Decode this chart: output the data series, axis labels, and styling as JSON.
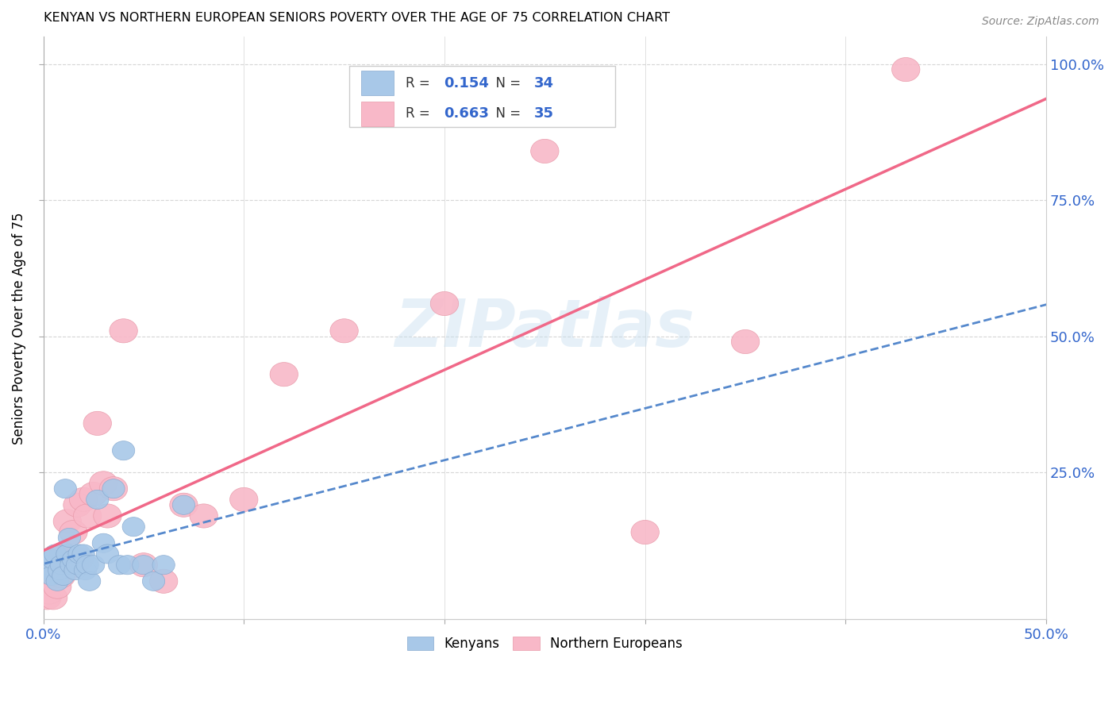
{
  "title": "KENYAN VS NORTHERN EUROPEAN SENIORS POVERTY OVER THE AGE OF 75 CORRELATION CHART",
  "source": "Source: ZipAtlas.com",
  "ylabel": "Seniors Poverty Over the Age of 75",
  "xlim": [
    0.0,
    0.5
  ],
  "ylim": [
    -0.02,
    1.05
  ],
  "xticks": [
    0.0,
    0.5
  ],
  "xtick_labels": [
    "0.0%",
    "50.0%"
  ],
  "ytick_vals": [
    0.25,
    0.5,
    0.75,
    1.0
  ],
  "ytick_labels": [
    "25.0%",
    "50.0%",
    "75.0%",
    "100.0%"
  ],
  "watermark_text": "ZIPatlas",
  "kenyan_R": 0.154,
  "kenyan_N": 34,
  "northern_R": 0.663,
  "northern_N": 35,
  "kenyan_color": "#a8c8e8",
  "northern_color": "#f8b8c8",
  "kenyan_edge_color": "#88aad0",
  "northern_edge_color": "#e898a8",
  "kenyan_line_color": "#5588cc",
  "northern_line_color": "#f06888",
  "kenyan_x": [
    0.002,
    0.003,
    0.004,
    0.005,
    0.006,
    0.007,
    0.008,
    0.009,
    0.01,
    0.011,
    0.012,
    0.013,
    0.014,
    0.015,
    0.016,
    0.017,
    0.018,
    0.02,
    0.021,
    0.022,
    0.023,
    0.025,
    0.027,
    0.03,
    0.032,
    0.035,
    0.038,
    0.04,
    0.042,
    0.045,
    0.05,
    0.055,
    0.06,
    0.07
  ],
  "kenyan_y": [
    0.08,
    0.07,
    0.06,
    0.09,
    0.1,
    0.05,
    0.07,
    0.08,
    0.06,
    0.22,
    0.1,
    0.13,
    0.08,
    0.09,
    0.07,
    0.08,
    0.1,
    0.1,
    0.07,
    0.08,
    0.05,
    0.08,
    0.2,
    0.12,
    0.1,
    0.22,
    0.08,
    0.29,
    0.08,
    0.15,
    0.08,
    0.05,
    0.08,
    0.19
  ],
  "northern_x": [
    0.002,
    0.003,
    0.004,
    0.005,
    0.006,
    0.007,
    0.008,
    0.009,
    0.01,
    0.011,
    0.012,
    0.013,
    0.015,
    0.017,
    0.018,
    0.02,
    0.022,
    0.025,
    0.027,
    0.03,
    0.032,
    0.035,
    0.04,
    0.05,
    0.06,
    0.07,
    0.08,
    0.1,
    0.12,
    0.15,
    0.2,
    0.25,
    0.3,
    0.35,
    0.43
  ],
  "northern_y": [
    0.02,
    0.03,
    0.07,
    0.02,
    0.06,
    0.04,
    0.08,
    0.06,
    0.1,
    0.07,
    0.16,
    0.09,
    0.14,
    0.19,
    0.09,
    0.2,
    0.17,
    0.21,
    0.34,
    0.23,
    0.17,
    0.22,
    0.51,
    0.08,
    0.05,
    0.19,
    0.17,
    0.2,
    0.43,
    0.51,
    0.56,
    0.84,
    0.14,
    0.49,
    0.99
  ]
}
